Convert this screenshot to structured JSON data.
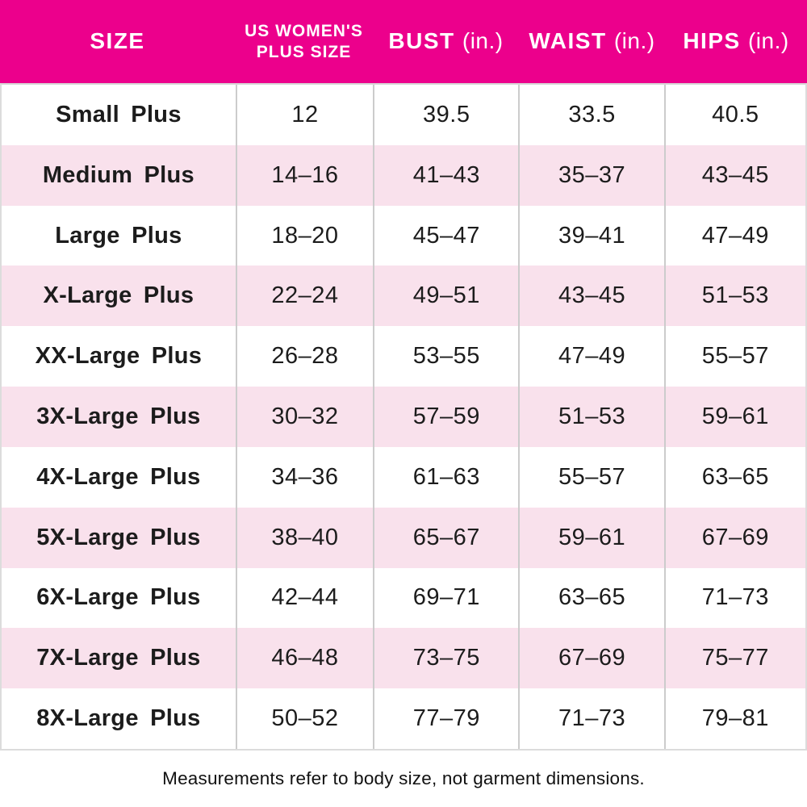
{
  "colors": {
    "header_bg": "#EC008C",
    "header_text": "#FFFFFF",
    "alt_row_bg": "#F9E1EC",
    "grid_line": "#CCCCCC",
    "body_text": "#1C1C1C"
  },
  "header": {
    "cols": [
      {
        "title": "SIZE",
        "unit": ""
      },
      {
        "title": "US WOMEN'S",
        "title2": "PLUS SIZE",
        "unit": ""
      },
      {
        "title": "BUST",
        "unit": "(in.)"
      },
      {
        "title": "WAIST",
        "unit": "(in.)"
      },
      {
        "title": "HIPS",
        "unit": "(in.)"
      }
    ]
  },
  "footnote": {
    "text": "Measurements refer to body size, not garment dimensions."
  },
  "chart_data": {
    "type": "table",
    "title": "Women's plus size chart",
    "columns": [
      "SIZE",
      "US WOMEN'S PLUS SIZE",
      "BUST (in.)",
      "WAIST (in.)",
      "HIPS (in.)"
    ],
    "rows": [
      [
        "Small Plus",
        "12",
        "39.5",
        "33.5",
        "40.5"
      ],
      [
        "Medium Plus",
        "14–16",
        "41–43",
        "35–37",
        "43–45"
      ],
      [
        "Large Plus",
        "18–20",
        "45–47",
        "39–41",
        "47–49"
      ],
      [
        "X-Large Plus",
        "22–24",
        "49–51",
        "43–45",
        "51–53"
      ],
      [
        "XX-Large Plus",
        "26–28",
        "53–55",
        "47–49",
        "55–57"
      ],
      [
        "3X-Large Plus",
        "30–32",
        "57–59",
        "51–53",
        "59–61"
      ],
      [
        "4X-Large Plus",
        "34–36",
        "61–63",
        "55–57",
        "63–65"
      ],
      [
        "5X-Large Plus",
        "38–40",
        "65–67",
        "59–61",
        "67–69"
      ],
      [
        "6X-Large Plus",
        "42–44",
        "69–71",
        "63–65",
        "71–73"
      ],
      [
        "7X-Large Plus",
        "46–48",
        "73–75",
        "67–69",
        "75–77"
      ],
      [
        "8X-Large Plus",
        "50–52",
        "77–79",
        "71–73",
        "79–81"
      ]
    ],
    "layout": {
      "striped_rows": true,
      "stripe_color": "#F9E1EC",
      "header_color": "#EC008C",
      "footnote": "Measurements refer to body size, not garment dimensions."
    }
  }
}
